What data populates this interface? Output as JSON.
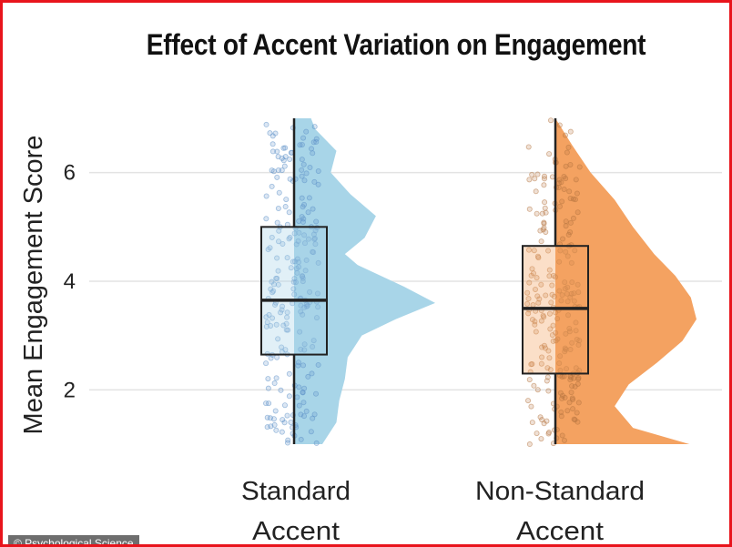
{
  "chart_data": {
    "type": "raincloud",
    "title": "Effect of Accent Variation on Engagement",
    "xlabel": "",
    "ylabel": "Mean Engagement Score",
    "ylim": [
      0.85,
      7.15
    ],
    "yticks": [
      2,
      4,
      6
    ],
    "grid": true,
    "groups": [
      {
        "label_lines": [
          "Standard",
          "Accent"
        ],
        "color": "#a8d5e8",
        "point_color": "#5b8fc7",
        "min": 1.0,
        "q1": 2.65,
        "median": 3.65,
        "q3": 5.0,
        "max": 7.0,
        "density": [
          [
            1.0,
            0.2
          ],
          [
            1.4,
            0.3
          ],
          [
            1.8,
            0.32
          ],
          [
            2.2,
            0.36
          ],
          [
            2.6,
            0.38
          ],
          [
            3.0,
            0.48
          ],
          [
            3.3,
            0.72
          ],
          [
            3.6,
            1.0
          ],
          [
            3.9,
            0.78
          ],
          [
            4.3,
            0.45
          ],
          [
            4.5,
            0.36
          ],
          [
            4.8,
            0.5
          ],
          [
            5.2,
            0.58
          ],
          [
            5.6,
            0.4
          ],
          [
            6.0,
            0.26
          ],
          [
            6.4,
            0.3
          ],
          [
            6.8,
            0.15
          ],
          [
            7.0,
            0.12
          ]
        ]
      },
      {
        "label_lines": [
          "Non-Standard",
          "Accent"
        ],
        "color": "#f4a261",
        "point_color": "#b5743f",
        "min": 1.0,
        "q1": 2.3,
        "median": 3.5,
        "q3": 4.65,
        "max": 7.0,
        "density": [
          [
            1.0,
            0.95
          ],
          [
            1.3,
            0.55
          ],
          [
            1.7,
            0.42
          ],
          [
            2.1,
            0.52
          ],
          [
            2.5,
            0.72
          ],
          [
            2.9,
            0.9
          ],
          [
            3.3,
            1.0
          ],
          [
            3.7,
            0.96
          ],
          [
            4.1,
            0.85
          ],
          [
            4.5,
            0.7
          ],
          [
            5.0,
            0.55
          ],
          [
            5.5,
            0.42
          ],
          [
            6.0,
            0.25
          ],
          [
            6.5,
            0.12
          ],
          [
            7.0,
            0.0
          ]
        ]
      }
    ]
  },
  "credit": "© Psychological Science"
}
